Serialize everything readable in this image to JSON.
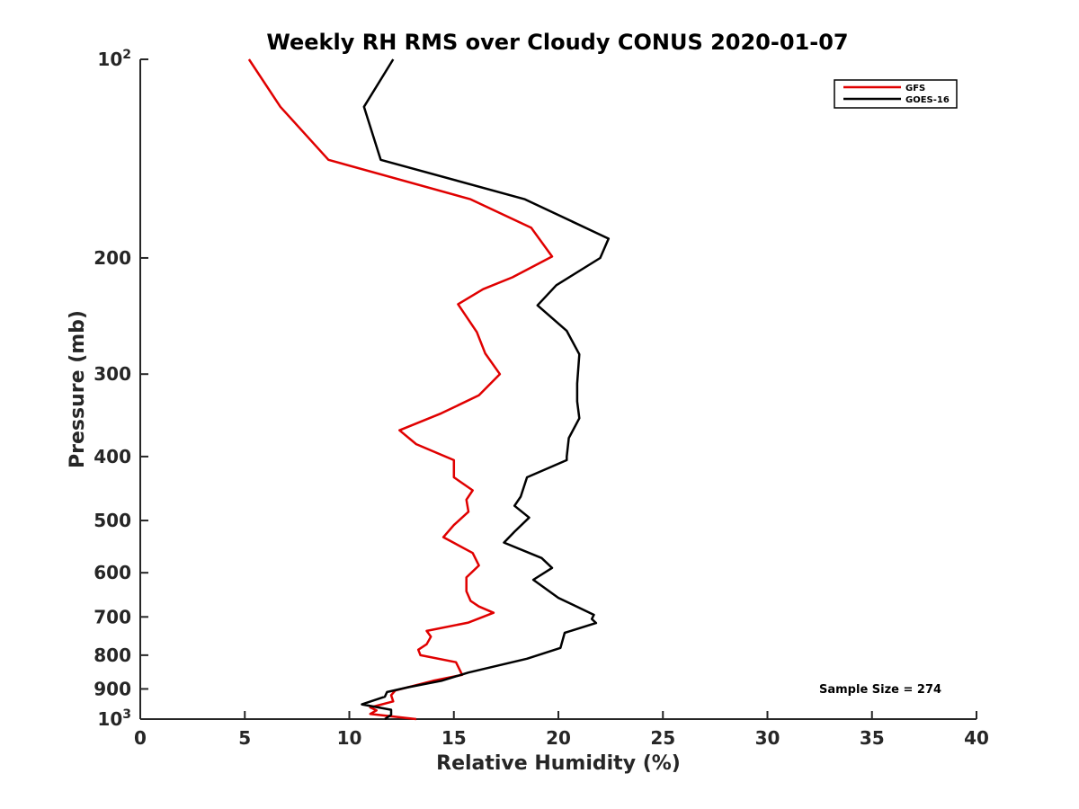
{
  "chart_data": {
    "type": "line",
    "title": "Weekly RH RMS over Cloudy CONUS 2020-01-07",
    "xlabel": "Relative Humidity (%)",
    "ylabel": "Pressure (mb)",
    "xlim": [
      0,
      40
    ],
    "ylim": [
      100,
      1000
    ],
    "yscale": "log",
    "y_reversed": true,
    "x_ticks": [
      "0",
      "5",
      "10",
      "15",
      "20",
      "25",
      "30",
      "35",
      "40"
    ],
    "y_ticks": [
      {
        "value": 100,
        "base": "10",
        "exp": "2"
      },
      {
        "value": 200,
        "label": "200"
      },
      {
        "value": 300,
        "label": "300"
      },
      {
        "value": 400,
        "label": "400"
      },
      {
        "value": 500,
        "label": "500"
      },
      {
        "value": 600,
        "label": "600"
      },
      {
        "value": 700,
        "label": "700"
      },
      {
        "value": 800,
        "label": "800"
      },
      {
        "value": 900,
        "label": "900"
      },
      {
        "value": 1000,
        "base": "10",
        "exp": "3"
      }
    ],
    "legend_position": "top-right",
    "annotation": "Sample Size = 274",
    "series": [
      {
        "name": "GFS",
        "color": "#e00000",
        "points": [
          [
            5.2,
            100
          ],
          [
            6.7,
            118
          ],
          [
            9.0,
            142
          ],
          [
            15.8,
            163
          ],
          [
            18.7,
            180
          ],
          [
            19.7,
            199
          ],
          [
            17.8,
            214
          ],
          [
            16.4,
            223
          ],
          [
            15.2,
            235
          ],
          [
            16.1,
            259
          ],
          [
            16.5,
            279
          ],
          [
            17.2,
            300
          ],
          [
            16.2,
            323
          ],
          [
            14.4,
            344
          ],
          [
            12.4,
            365
          ],
          [
            13.2,
            383
          ],
          [
            15.0,
            405
          ],
          [
            15.0,
            430
          ],
          [
            15.9,
            450
          ],
          [
            15.6,
            465
          ],
          [
            15.7,
            485
          ],
          [
            15.0,
            508
          ],
          [
            14.5,
            530
          ],
          [
            15.9,
            560
          ],
          [
            16.2,
            585
          ],
          [
            15.6,
            610
          ],
          [
            15.6,
            640
          ],
          [
            15.8,
            662
          ],
          [
            16.2,
            675
          ],
          [
            16.9,
            690
          ],
          [
            15.7,
            714
          ],
          [
            13.7,
            735
          ],
          [
            13.9,
            750
          ],
          [
            13.7,
            770
          ],
          [
            13.3,
            785
          ],
          [
            13.4,
            800
          ],
          [
            15.1,
            820
          ],
          [
            15.4,
            857
          ],
          [
            14.0,
            875
          ],
          [
            12.2,
            905
          ],
          [
            12.0,
            920
          ],
          [
            12.1,
            940
          ],
          [
            11.0,
            960
          ],
          [
            11.3,
            970
          ],
          [
            11.0,
            982
          ],
          [
            13.2,
            1000
          ]
        ]
      },
      {
        "name": "GOES-16",
        "color": "#000000",
        "points": [
          [
            12.1,
            100
          ],
          [
            10.7,
            118
          ],
          [
            11.5,
            142
          ],
          [
            18.4,
            163
          ],
          [
            22.4,
            187
          ],
          [
            22.0,
            200
          ],
          [
            19.9,
            220
          ],
          [
            19.0,
            236
          ],
          [
            20.4,
            258
          ],
          [
            21.0,
            280
          ],
          [
            20.9,
            310
          ],
          [
            20.9,
            330
          ],
          [
            21.0,
            350
          ],
          [
            20.5,
            375
          ],
          [
            20.4,
            400
          ],
          [
            20.4,
            405
          ],
          [
            18.5,
            430
          ],
          [
            18.2,
            460
          ],
          [
            17.9,
            475
          ],
          [
            18.6,
            495
          ],
          [
            17.9,
            520
          ],
          [
            17.4,
            540
          ],
          [
            19.2,
            570
          ],
          [
            19.7,
            590
          ],
          [
            18.8,
            615
          ],
          [
            20.0,
            655
          ],
          [
            21.7,
            695
          ],
          [
            21.6,
            705
          ],
          [
            21.8,
            715
          ],
          [
            20.3,
            740
          ],
          [
            20.1,
            780
          ],
          [
            18.5,
            810
          ],
          [
            15.7,
            850
          ],
          [
            14.4,
            875
          ],
          [
            12.8,
            895
          ],
          [
            11.8,
            910
          ],
          [
            11.7,
            925
          ],
          [
            10.6,
            950
          ],
          [
            12.0,
            968
          ],
          [
            12.0,
            985
          ],
          [
            11.7,
            1000
          ]
        ]
      }
    ]
  }
}
